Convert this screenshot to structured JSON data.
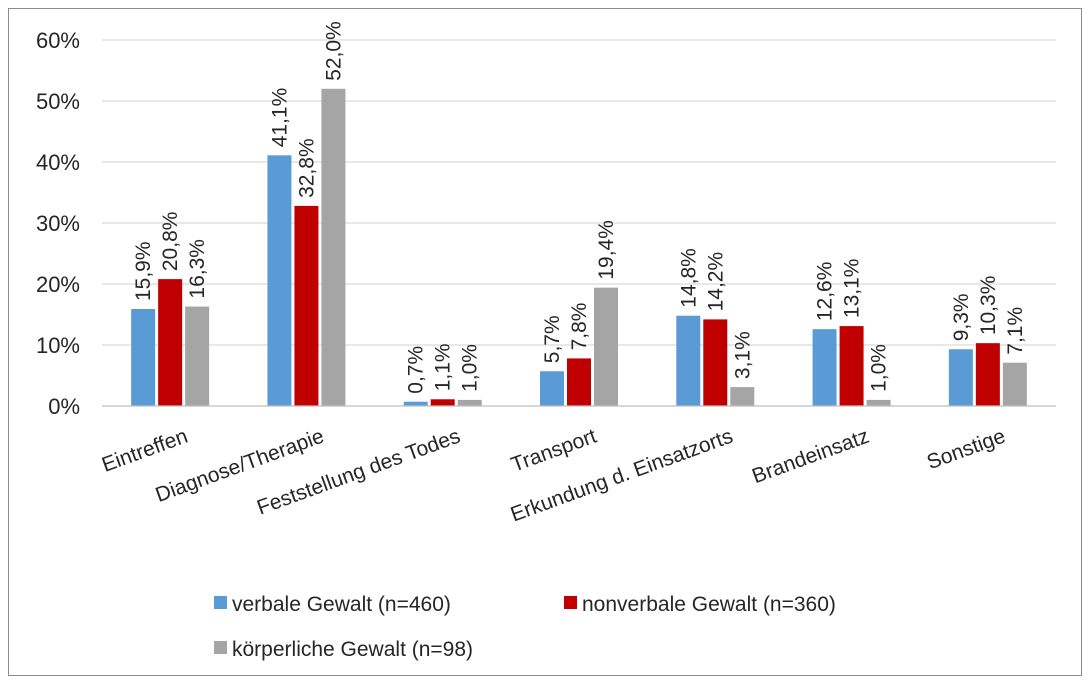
{
  "chart_data": {
    "type": "bar",
    "categories": [
      "Eintreffen",
      "Diagnose/Therapie",
      "Feststellung des Todes",
      "Transport",
      "Erkundung d. Einsatzorts",
      "Brandeinsatz",
      "Sonstige"
    ],
    "series": [
      {
        "name": "verbale Gewalt (n=460)",
        "color": "#5b9bd5",
        "values": [
          15.9,
          41.1,
          0.7,
          5.7,
          14.8,
          12.6,
          9.3
        ],
        "labels": [
          "15,9%",
          "41,1%",
          "0,7%",
          "5,7%",
          "14,8%",
          "12,6%",
          "9,3%"
        ]
      },
      {
        "name": "nonverbale Gewalt (n=360)",
        "color": "#c00000",
        "values": [
          20.8,
          32.8,
          1.1,
          7.8,
          14.2,
          13.1,
          10.3
        ],
        "labels": [
          "20,8%",
          "32,8%",
          "1,1%",
          "7,8%",
          "14,2%",
          "13,1%",
          "10,3%"
        ]
      },
      {
        "name": "körperliche Gewalt (n=98)",
        "color": "#a5a5a5",
        "values": [
          16.3,
          52.0,
          1.0,
          19.4,
          3.1,
          1.0,
          7.1
        ],
        "labels": [
          "16,3%",
          "52,0%",
          "1,0%",
          "19,4%",
          "3,1%",
          "1,0%",
          "7,1%"
        ]
      }
    ],
    "y_ticks": [
      0,
      10,
      20,
      30,
      40,
      50,
      60
    ],
    "y_tick_labels": [
      "0%",
      "10%",
      "20%",
      "30%",
      "40%",
      "50%",
      "60%"
    ],
    "ylim": [
      0,
      60
    ],
    "grid": true,
    "legend_position": "bottom"
  }
}
